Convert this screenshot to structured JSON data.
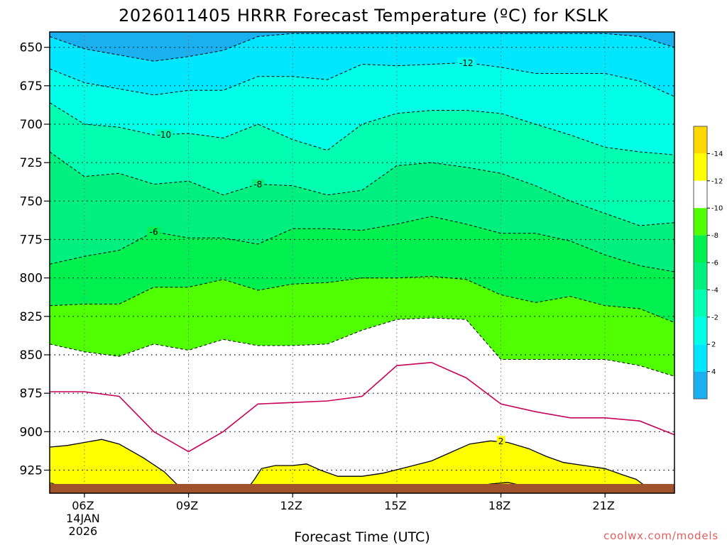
{
  "chart_data": {
    "type": "heatmap",
    "title": "2026011405 HRRR Forecast Temperature (ºC) for KSLK",
    "xlabel": "Forecast Time (UTC)",
    "ylabel": "",
    "credit": "coolwx.com/models",
    "x_ticks": [
      {
        "hour": 6,
        "label": "06Z",
        "sub": [
          "14JAN",
          "2026"
        ]
      },
      {
        "hour": 9,
        "label": "09Z",
        "sub": []
      },
      {
        "hour": 12,
        "label": "12Z",
        "sub": []
      },
      {
        "hour": 15,
        "label": "15Z",
        "sub": []
      },
      {
        "hour": 18,
        "label": "18Z",
        "sub": []
      },
      {
        "hour": 21,
        "label": "21Z",
        "sub": []
      }
    ],
    "xlim": [
      5,
      23
    ],
    "ylim": [
      940,
      640
    ],
    "y_ticks": [
      650,
      675,
      700,
      725,
      750,
      775,
      800,
      825,
      850,
      875,
      900,
      925
    ],
    "y_tick_labels": [
      "650",
      "675",
      "700",
      "725",
      "750",
      "775",
      "800",
      "825",
      "850",
      "875",
      "900",
      "925"
    ],
    "grid": true,
    "colorbar": {
      "levels": [
        -16,
        -14,
        -12,
        -10,
        -8,
        -6,
        -4,
        -2,
        2,
        4,
        6
      ],
      "colors": [
        "#1ab0f0",
        "#00e6ff",
        "#00ffe6",
        "#00ffb0",
        "#00f080",
        "#00f050",
        "#50ff00",
        "#ffffff",
        "#ffff00",
        "#ffd800"
      ],
      "tick_labels": [
        "-14",
        "-12",
        "-10",
        "-8",
        "-6",
        "-4",
        "-2",
        "2",
        "4"
      ]
    },
    "times": [
      5,
      6,
      7,
      8,
      9,
      10,
      11,
      12,
      13,
      14,
      15,
      16,
      17,
      18,
      19,
      20,
      21,
      22,
      23
    ],
    "isotherms": [
      {
        "level": -14,
        "p": [
          643,
          651,
          655,
          659,
          656,
          652,
          643,
          641,
          641,
          641,
          641,
          641,
          641,
          641,
          641,
          641,
          641,
          643,
          650
        ],
        "fill": "#00e6ff"
      },
      {
        "level": -12,
        "p": [
          664,
          673,
          677,
          681,
          678,
          678,
          669,
          669,
          671,
          661,
          662,
          661,
          660,
          663,
          667,
          667,
          667,
          672,
          682
        ],
        "fill": "#00ffe6",
        "label": {
          "t": 17,
          "text": "-12"
        }
      },
      {
        "level": -10,
        "p": [
          686,
          700,
          702,
          707,
          706,
          709,
          700,
          710,
          717,
          700,
          693,
          691,
          691,
          693,
          700,
          707,
          715,
          718,
          720
        ],
        "fill": "#00ffb0",
        "label": {
          "t": 8.3,
          "text": "-10"
        }
      },
      {
        "level": -8,
        "p": [
          718,
          734,
          732,
          739,
          737,
          746,
          739,
          740,
          746,
          743,
          727,
          725,
          728,
          732,
          740,
          750,
          758,
          766,
          764
        ],
        "fill": "#00f080",
        "label": {
          "t": 11,
          "text": "-8"
        }
      },
      {
        "level": -6,
        "p": [
          791,
          786,
          782,
          770,
          774,
          774,
          778,
          768,
          768,
          769,
          765,
          760,
          765,
          771,
          771,
          776,
          785,
          792,
          796
        ],
        "fill": "#00f050",
        "label": {
          "t": 8.0,
          "text": "-6"
        }
      },
      {
        "level": -4,
        "p": [
          818,
          817,
          817,
          806,
          806,
          801,
          808,
          804,
          803,
          800,
          800,
          799,
          801,
          811,
          816,
          812,
          818,
          820,
          829
        ],
        "fill": "#50ff00"
      },
      {
        "level": -2,
        "p": [
          843,
          848,
          851,
          843,
          847,
          840,
          844,
          844,
          843,
          834,
          827,
          826,
          827,
          853,
          853,
          853,
          853,
          857,
          864
        ],
        "fill": "#ffffff"
      }
    ],
    "zero_line": {
      "level": 0,
      "p": [
        874,
        874,
        877,
        900,
        913,
        900,
        882,
        881,
        880,
        877,
        857,
        855,
        865,
        882,
        887,
        891,
        891,
        893,
        902
      ]
    },
    "warm_areas": [
      {
        "level": 2,
        "fill": "#ffff00",
        "label": {
          "t": 18,
          "p": 906,
          "text": "2"
        },
        "top": [
          [
            5,
            910
          ],
          [
            5.5,
            909
          ],
          [
            6,
            907
          ],
          [
            6.5,
            905
          ],
          [
            7,
            908
          ],
          [
            7.7,
            917
          ],
          [
            8.3,
            926
          ],
          [
            8.7,
            935
          ],
          [
            9.2,
            940
          ]
        ],
        "closed": false
      },
      {
        "level": 2,
        "fill": "#ffff00",
        "top": [
          [
            10.6,
            940
          ],
          [
            10.9,
            931
          ],
          [
            11.1,
            924
          ],
          [
            11.5,
            922
          ],
          [
            12,
            922
          ],
          [
            12.4,
            921
          ],
          [
            12.8,
            925
          ],
          [
            13.3,
            929
          ],
          [
            14,
            929
          ],
          [
            14.6,
            927
          ],
          [
            15.3,
            923
          ],
          [
            16,
            919
          ],
          [
            16.6,
            913
          ],
          [
            17.1,
            908
          ],
          [
            17.7,
            906
          ],
          [
            18.2,
            907
          ],
          [
            18.8,
            911
          ],
          [
            19.3,
            916
          ],
          [
            19.8,
            920
          ],
          [
            20.4,
            922
          ],
          [
            21,
            924
          ],
          [
            21.5,
            928
          ],
          [
            21.9,
            931
          ],
          [
            22.2,
            936
          ],
          [
            22.1,
            940
          ]
        ],
        "closed": false
      },
      {
        "level": 4,
        "fill": "#ffd800",
        "top": [
          [
            16.8,
            939
          ],
          [
            17.2,
            936
          ],
          [
            17.7,
            934
          ],
          [
            18.2,
            933
          ],
          [
            18.8,
            936
          ],
          [
            19.1,
            940
          ]
        ],
        "closed": false
      }
    ],
    "bottom_edge": {
      "level": 0,
      "p": [
        938,
        940,
        940,
        938,
        938,
        938,
        938,
        938,
        938,
        938,
        938,
        938,
        938,
        938,
        938,
        938,
        938,
        938,
        938
      ]
    }
  }
}
